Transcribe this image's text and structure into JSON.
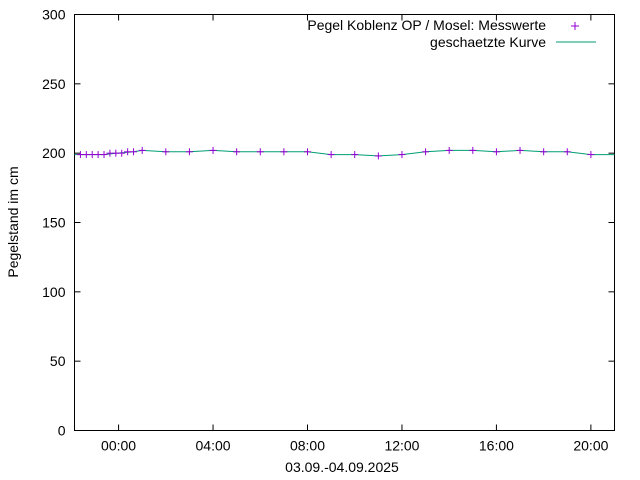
{
  "chart_data": {
    "type": "line",
    "xlabel": "03.09.-04.09.2025",
    "ylabel": "Pegelstand im cm",
    "xlim": [
      "2025-09-03T22:08",
      "2025-09-04T21:00"
    ],
    "ylim": [
      0,
      300
    ],
    "y_ticks": [
      0,
      50,
      100,
      150,
      200,
      250,
      300
    ],
    "x_ticks": [
      {
        "t": "2025-09-04T00:00",
        "label": "00:00"
      },
      {
        "t": "2025-09-04T04:00",
        "label": "04:00"
      },
      {
        "t": "2025-09-04T08:00",
        "label": "08:00"
      },
      {
        "t": "2025-09-04T12:00",
        "label": "12:00"
      },
      {
        "t": "2025-09-04T16:00",
        "label": "16:00"
      },
      {
        "t": "2025-09-04T20:00",
        "label": "20:00"
      }
    ],
    "grid": false,
    "legend_position": "top-right",
    "series": [
      {
        "name": "Pegel Koblenz OP / Mosel: Messwerte",
        "style": "points",
        "marker": "+",
        "color": "#9400d3",
        "points": [
          [
            "2025-09-03T22:23",
            199
          ],
          [
            "2025-09-03T22:38",
            199
          ],
          [
            "2025-09-03T22:53",
            199
          ],
          [
            "2025-09-03T23:08",
            199
          ],
          [
            "2025-09-03T23:23",
            199
          ],
          [
            "2025-09-03T23:38",
            200
          ],
          [
            "2025-09-03T23:53",
            200
          ],
          [
            "2025-09-04T00:08",
            200
          ],
          [
            "2025-09-04T00:23",
            201
          ],
          [
            "2025-09-04T00:38",
            201
          ],
          [
            "2025-09-04T01:00",
            202
          ],
          [
            "2025-09-04T02:00",
            201
          ],
          [
            "2025-09-04T03:00",
            201
          ],
          [
            "2025-09-04T04:00",
            202
          ],
          [
            "2025-09-04T05:00",
            201
          ],
          [
            "2025-09-04T06:00",
            201
          ],
          [
            "2025-09-04T07:00",
            201
          ],
          [
            "2025-09-04T08:00",
            201
          ],
          [
            "2025-09-04T09:00",
            199
          ],
          [
            "2025-09-04T10:00",
            199
          ],
          [
            "2025-09-04T11:00",
            198
          ],
          [
            "2025-09-04T12:00",
            199
          ],
          [
            "2025-09-04T13:00",
            201
          ],
          [
            "2025-09-04T14:00",
            202
          ],
          [
            "2025-09-04T15:00",
            202
          ],
          [
            "2025-09-04T16:00",
            201
          ],
          [
            "2025-09-04T17:00",
            202
          ],
          [
            "2025-09-04T18:00",
            201
          ],
          [
            "2025-09-04T19:00",
            201
          ],
          [
            "2025-09-04T20:00",
            199
          ]
        ]
      },
      {
        "name": "geschaetzte Kurve",
        "style": "line",
        "color": "#009e73",
        "points": [
          [
            "2025-09-03T22:08",
            199
          ],
          [
            "2025-09-03T23:23",
            199
          ],
          [
            "2025-09-03T23:53",
            200
          ],
          [
            "2025-09-04T00:38",
            201
          ],
          [
            "2025-09-04T01:00",
            202
          ],
          [
            "2025-09-04T02:00",
            201
          ],
          [
            "2025-09-04T03:00",
            201
          ],
          [
            "2025-09-04T04:00",
            202
          ],
          [
            "2025-09-04T05:00",
            201
          ],
          [
            "2025-09-04T07:00",
            201
          ],
          [
            "2025-09-04T08:00",
            201
          ],
          [
            "2025-09-04T09:00",
            199
          ],
          [
            "2025-09-04T10:00",
            199
          ],
          [
            "2025-09-04T11:00",
            198
          ],
          [
            "2025-09-04T12:00",
            199
          ],
          [
            "2025-09-04T13:00",
            201
          ],
          [
            "2025-09-04T14:00",
            202
          ],
          [
            "2025-09-04T15:00",
            202
          ],
          [
            "2025-09-04T16:00",
            201
          ],
          [
            "2025-09-04T17:00",
            202
          ],
          [
            "2025-09-04T18:00",
            201
          ],
          [
            "2025-09-04T19:00",
            201
          ],
          [
            "2025-09-04T20:00",
            199
          ],
          [
            "2025-09-04T21:00",
            199
          ]
        ]
      }
    ]
  }
}
